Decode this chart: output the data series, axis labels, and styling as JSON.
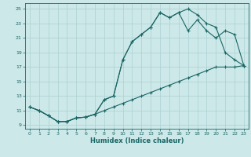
{
  "xlabel": "Humidex (Indice chaleur)",
  "bg_color": "#cde8e8",
  "grid_color": "#aad0d0",
  "line_color": "#1a6666",
  "xlim": [
    -0.5,
    23.5
  ],
  "ylim": [
    8.5,
    25.8
  ],
  "xticks": [
    0,
    1,
    2,
    3,
    4,
    5,
    6,
    7,
    8,
    9,
    10,
    11,
    12,
    13,
    14,
    15,
    16,
    17,
    18,
    19,
    20,
    21,
    22,
    23
  ],
  "yticks": [
    9,
    11,
    13,
    15,
    17,
    19,
    21,
    23,
    25
  ],
  "line1_x": [
    0,
    1,
    2,
    3,
    4,
    5,
    6,
    7,
    8,
    9,
    10,
    11,
    12,
    13,
    14,
    15,
    16,
    17,
    18,
    19,
    20,
    21,
    22,
    23
  ],
  "line1_y": [
    11.5,
    11.0,
    10.3,
    9.5,
    9.5,
    10.0,
    10.1,
    10.5,
    12.5,
    13.0,
    18.0,
    20.5,
    21.5,
    22.5,
    24.5,
    23.8,
    24.5,
    25.0,
    24.2,
    23.0,
    22.5,
    19.0,
    18.0,
    17.2
  ],
  "line2_x": [
    0,
    1,
    2,
    3,
    4,
    5,
    6,
    7,
    8,
    9,
    10,
    11,
    12,
    13,
    14,
    15,
    16,
    17,
    18,
    19,
    20,
    21,
    22,
    23
  ],
  "line2_y": [
    11.5,
    11.0,
    10.3,
    9.5,
    9.5,
    10.0,
    10.1,
    10.5,
    12.5,
    13.0,
    18.0,
    20.5,
    21.5,
    22.5,
    24.5,
    23.8,
    24.5,
    22.0,
    23.5,
    22.0,
    21.0,
    22.0,
    21.5,
    17.2
  ],
  "line3_x": [
    0,
    1,
    2,
    3,
    4,
    5,
    6,
    7,
    8,
    9,
    10,
    11,
    12,
    13,
    14,
    15,
    16,
    17,
    18,
    19,
    20,
    21,
    22,
    23
  ],
  "line3_y": [
    11.5,
    11.0,
    10.3,
    9.5,
    9.5,
    10.0,
    10.1,
    10.5,
    11.0,
    11.5,
    12.0,
    12.5,
    13.0,
    13.5,
    14.0,
    14.5,
    15.0,
    15.5,
    16.0,
    16.5,
    17.0,
    17.0,
    17.0,
    17.2
  ]
}
